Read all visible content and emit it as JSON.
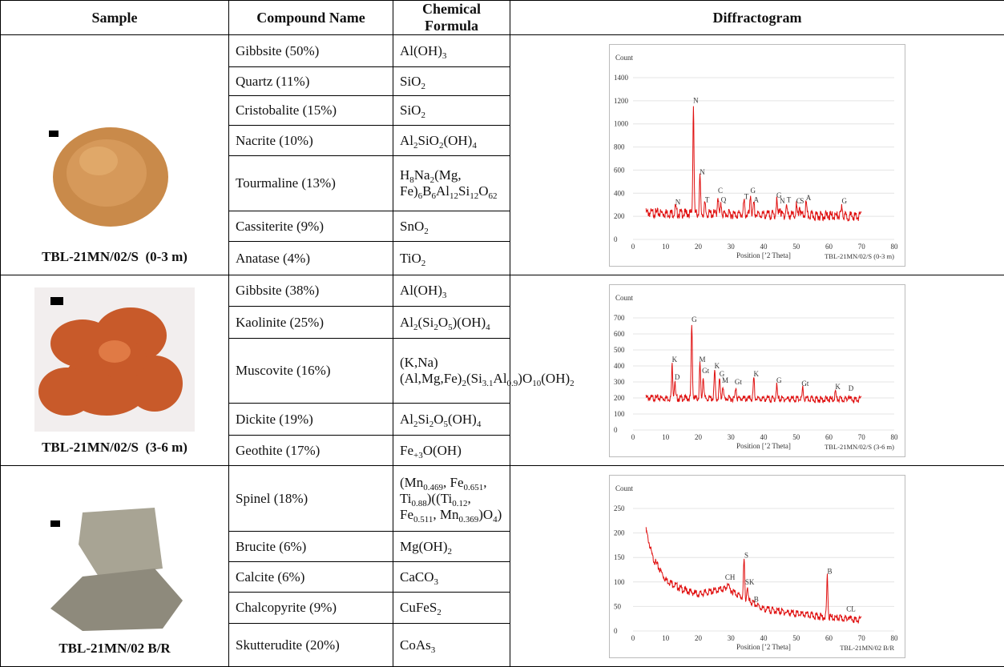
{
  "header": [
    "Sample",
    "Compound Name",
    "Chemical Formula",
    "Diffractogram"
  ],
  "samples": [
    {
      "name": "TBL-21MN/02/S  (0-3 m)",
      "compounds": [
        {
          "name": "Gibbsite (50%)",
          "formula": [
            "Al(OH)",
            "3"
          ]
        },
        {
          "name": "Quartz (11%)",
          "formula": [
            "SiO",
            "2"
          ]
        },
        {
          "name": "Cristobalite (15%)",
          "formula": [
            "SiO",
            "2"
          ]
        },
        {
          "name": "Nacrite (10%)",
          "formula": [
            "Al",
            "2",
            "SiO",
            "2",
            "(OH)",
            "4"
          ]
        },
        {
          "name": "Tourmaline (13%)",
          "formula": [
            "H",
            "8",
            "Na",
            "2",
            "(Mg, Fe)",
            "6",
            "B",
            "6",
            "Al",
            "12",
            "Si",
            "12",
            "O",
            "62"
          ]
        },
        {
          "name": "Cassiterite (9%)",
          "formula": [
            "SnO",
            "2"
          ]
        },
        {
          "name": "Anatase (4%)",
          "formula": [
            "TiO",
            "2"
          ]
        }
      ],
      "diffractogram": {
        "ylabel": "Count",
        "xlabel": "Position [’2 Theta]",
        "caption": "TBL-21MN/02/S (0-3 m)",
        "xlim": [
          0,
          80
        ],
        "xticks": [
          0,
          10,
          20,
          30,
          40,
          50,
          60,
          70,
          80
        ],
        "ylim": [
          0,
          1400
        ],
        "yticks": [
          0,
          200,
          400,
          600,
          800,
          1000,
          1200,
          1400
        ],
        "baseline": [
          [
            4,
            230
          ],
          [
            70,
            200
          ]
        ],
        "peaks": [
          {
            "label": "N",
            "x": 13,
            "y": 280
          },
          {
            "label": "N",
            "x": 18.5,
            "y": 1160
          },
          {
            "label": "N",
            "x": 20.5,
            "y": 540
          },
          {
            "label": "T",
            "x": 22,
            "y": 300
          },
          {
            "label": "C",
            "x": 26,
            "y": 380
          },
          {
            "label": "Q",
            "x": 27,
            "y": 300
          },
          {
            "label": "T",
            "x": 34,
            "y": 330
          },
          {
            "label": "G",
            "x": 36,
            "y": 380
          },
          {
            "label": "A",
            "x": 37,
            "y": 300
          },
          {
            "label": "G",
            "x": 44,
            "y": 340
          },
          {
            "label": "N",
            "x": 45,
            "y": 290
          },
          {
            "label": "T",
            "x": 47,
            "y": 300
          },
          {
            "label": "C",
            "x": 50,
            "y": 290
          },
          {
            "label": "S",
            "x": 51,
            "y": 290
          },
          {
            "label": "A",
            "x": 53,
            "y": 320
          },
          {
            "label": "G",
            "x": 64,
            "y": 290
          }
        ]
      }
    },
    {
      "name": "TBL-21MN/02/S  (3-6 m)",
      "compounds": [
        {
          "name": "Gibbsite (38%)",
          "formula": [
            "Al(OH)",
            "3"
          ]
        },
        {
          "name": "Kaolinite (25%)",
          "formula": [
            "Al",
            "2",
            "(Si",
            "2",
            "O",
            "5",
            ")(OH)",
            "4"
          ]
        },
        {
          "name": "Muscovite (16%)",
          "formula": [
            "(K,Na)(Al,Mg,Fe)",
            "2",
            "(Si",
            "3.1",
            "Al",
            "0.9",
            ")O",
            "10",
            "(OH)",
            "2"
          ]
        },
        {
          "name": "Dickite (19%)",
          "formula": [
            "Al",
            "2",
            "Si",
            "2",
            "O",
            "5",
            "(OH)",
            "4"
          ]
        },
        {
          "name": "Geothite (17%)",
          "formula": [
            "Fe",
            "+3",
            "O(OH)"
          ]
        }
      ],
      "diffractogram": {
        "ylabel": "Count",
        "xlabel": "Position [’2 Theta]",
        "caption": "TBL-21MN/02/S (3-6 m)",
        "xlim": [
          0,
          80
        ],
        "xticks": [
          0,
          10,
          20,
          30,
          40,
          50,
          60,
          70,
          80
        ],
        "ylim": [
          0,
          700
        ],
        "yticks": [
          0,
          100,
          200,
          300,
          400,
          500,
          600,
          700
        ],
        "baseline": [
          [
            4,
            200
          ],
          [
            70,
            190
          ]
        ],
        "peaks": [
          {
            "label": "K",
            "x": 12,
            "y": 410
          },
          {
            "label": "D",
            "x": 12.8,
            "y": 300
          },
          {
            "label": "G",
            "x": 18,
            "y": 660
          },
          {
            "label": "M",
            "x": 20.5,
            "y": 410
          },
          {
            "label": "Gt",
            "x": 21.5,
            "y": 340
          },
          {
            "label": "K",
            "x": 25,
            "y": 370
          },
          {
            "label": "G",
            "x": 26.5,
            "y": 320
          },
          {
            "label": "M",
            "x": 27.5,
            "y": 280
          },
          {
            "label": "Gt",
            "x": 31.5,
            "y": 270
          },
          {
            "label": "K",
            "x": 37,
            "y": 320
          },
          {
            "label": "G",
            "x": 44,
            "y": 280
          },
          {
            "label": "Gt",
            "x": 52,
            "y": 260
          },
          {
            "label": "K",
            "x": 62,
            "y": 240
          },
          {
            "label": "D",
            "x": 66,
            "y": 230
          }
        ]
      }
    },
    {
      "name": "TBL-21MN/02 B/R",
      "compounds": [
        {
          "name": "Spinel (18%)",
          "formula": [
            "(Mn",
            "0.469",
            ", Fe",
            "0.651",
            ", Ti",
            "0.88",
            ")((Ti",
            "0.12",
            ", Fe",
            "0.511",
            ", Mn",
            "0.369",
            ")O",
            "4",
            ")"
          ]
        },
        {
          "name": "Brucite (6%)",
          "formula": [
            "Mg(OH)",
            "2"
          ]
        },
        {
          "name": "Calcite (6%)",
          "formula": [
            "CaCO",
            "3"
          ]
        },
        {
          "name": "Chalcopyrite (9%)",
          "formula": [
            "CuFeS",
            "2"
          ]
        },
        {
          "name": "Skutterudite (20%)",
          "formula": [
            "CoAs",
            "3"
          ]
        }
      ],
      "diffractogram": {
        "ylabel": "Count",
        "xlabel": "Position [’2 Theta]",
        "caption": "TBL-21MN/02 B/R",
        "xlim": [
          0,
          80
        ],
        "xticks": [
          0,
          10,
          20,
          30,
          40,
          50,
          60,
          70,
          80
        ],
        "ylim": [
          0,
          250
        ],
        "yticks": [
          0,
          50,
          100,
          150,
          200,
          250
        ],
        "baseline": [
          [
            4,
            205
          ],
          [
            6,
            150
          ],
          [
            10,
            105
          ],
          [
            15,
            85
          ],
          [
            20,
            75
          ],
          [
            25,
            82
          ],
          [
            29,
            88
          ],
          [
            33,
            70
          ],
          [
            40,
            45
          ],
          [
            50,
            35
          ],
          [
            60,
            28
          ],
          [
            70,
            22
          ]
        ],
        "peaks": [
          {
            "label": "CH",
            "x": 29,
            "y": 100
          },
          {
            "label": "S",
            "x": 34,
            "y": 145
          },
          {
            "label": "SK",
            "x": 35,
            "y": 90
          },
          {
            "label": "B",
            "x": 37,
            "y": 55
          },
          {
            "label": "B",
            "x": 59.5,
            "y": 112
          },
          {
            "label": "CL",
            "x": 66,
            "y": 35
          }
        ]
      }
    }
  ]
}
